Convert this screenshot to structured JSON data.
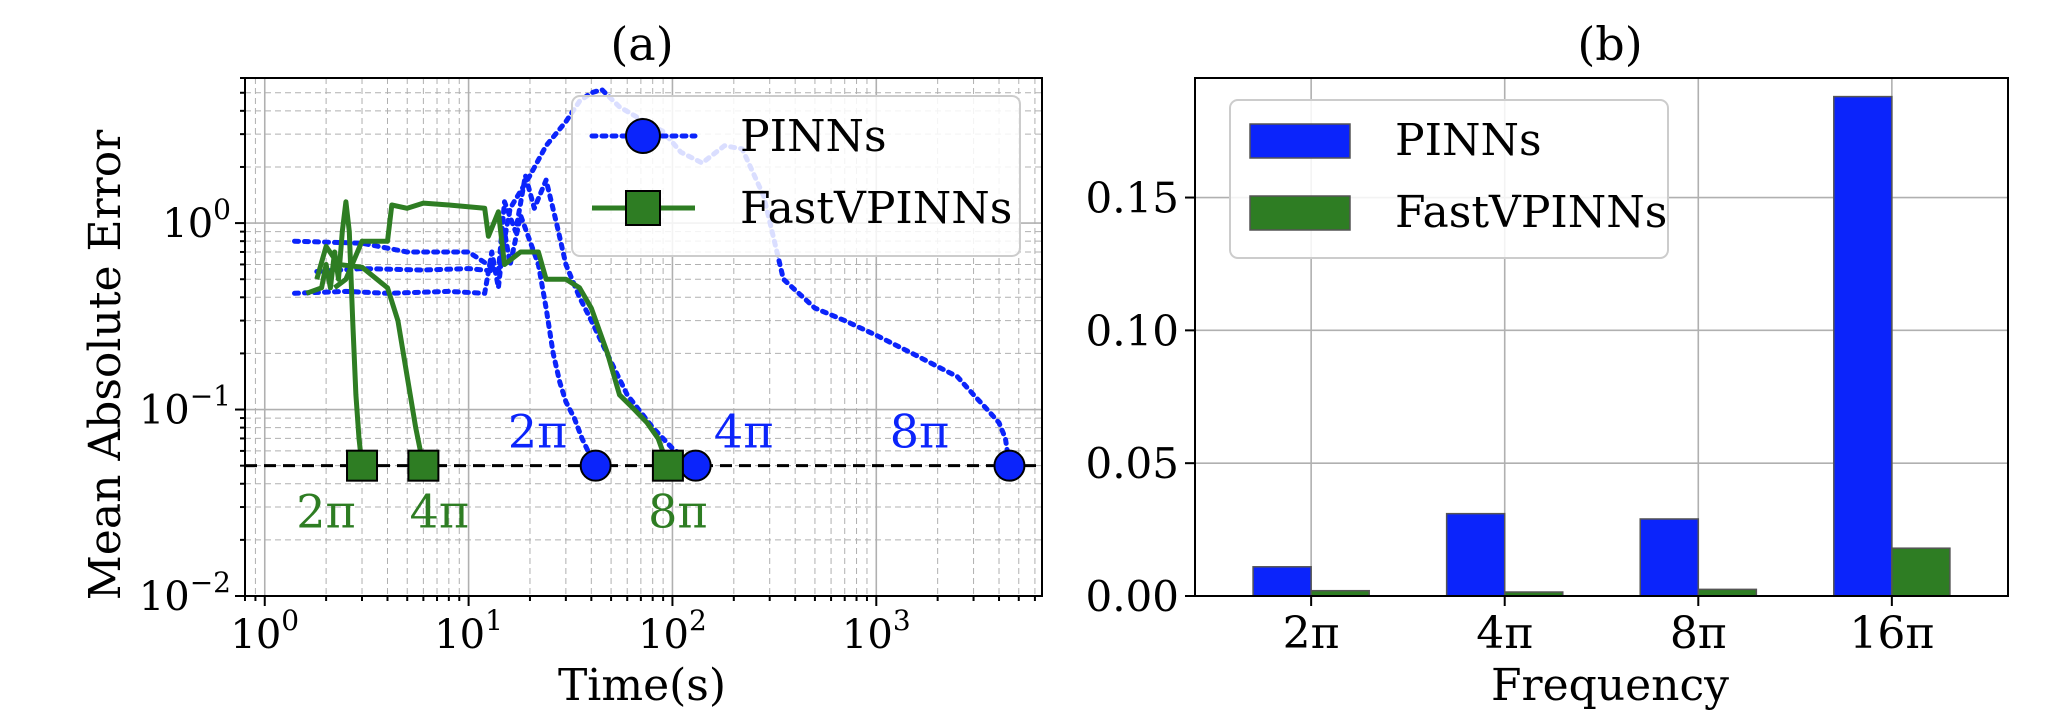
{
  "colors": {
    "pinns": "#0b24fb",
    "fastvpinns": "#2e7d23",
    "grid": "#b0b0b0",
    "threshold": "#000000"
  },
  "chart_data": [
    {
      "panel": "a",
      "type": "line",
      "title": "(a)",
      "xlabel": "Time(s)",
      "ylabel": "Mean Absolute Error",
      "xscale": "log",
      "yscale": "log",
      "xlim": [
        0.8,
        6500
      ],
      "ylim": [
        0.01,
        6
      ],
      "xticks": [
        1,
        10,
        100,
        1000
      ],
      "xtick_labels": [
        {
          "base": "10",
          "exp": "0"
        },
        {
          "base": "10",
          "exp": "1"
        },
        {
          "base": "10",
          "exp": "2"
        },
        {
          "base": "10",
          "exp": "3"
        }
      ],
      "yticks": [
        0.01,
        0.1,
        1
      ],
      "ytick_labels": [
        {
          "base": "10",
          "exp": "−2"
        },
        {
          "base": "10",
          "exp": "−1"
        },
        {
          "base": "10",
          "exp": "0"
        }
      ],
      "grid": true,
      "legend_position": "upper-right",
      "threshold": 0.05,
      "series": [
        {
          "name": "PINNs",
          "style": "dotted-line-circle-marker",
          "runs": [
            {
              "label": "2π",
              "end": [
                42,
                0.05
              ],
              "points": [
                [
                  1.4,
                  0.42
                ],
                [
                  2.5,
                  0.43
                ],
                [
                  4,
                  0.42
                ],
                [
                  8,
                  0.43
                ],
                [
                  12,
                  0.42
                ],
                [
                  13,
                  0.7
                ],
                [
                  14,
                  0.45
                ],
                [
                  15,
                  0.9
                ],
                [
                  16,
                  0.6
                ],
                [
                  18,
                  1.1
                ],
                [
                  20,
                  0.8
                ],
                [
                  22,
                  0.6
                ],
                [
                  24,
                  0.35
                ],
                [
                  26,
                  0.2
                ],
                [
                  28,
                  0.14
                ],
                [
                  30,
                  0.11
                ],
                [
                  33,
                  0.09
                ],
                [
                  36,
                  0.07
                ],
                [
                  40,
                  0.055
                ],
                [
                  42,
                  0.05
                ]
              ]
            },
            {
              "label": "4π",
              "end": [
                130,
                0.05
              ],
              "points": [
                [
                  1.4,
                  0.8
                ],
                [
                  3,
                  0.78
                ],
                [
                  5,
                  0.7
                ],
                [
                  10,
                  0.7
                ],
                [
                  14,
                  0.55
                ],
                [
                  15,
                  1.3
                ],
                [
                  17,
                  0.9
                ],
                [
                  19,
                  1.8
                ],
                [
                  21,
                  1.2
                ],
                [
                  24,
                  1.7
                ],
                [
                  27,
                  1.0
                ],
                [
                  30,
                  0.6
                ],
                [
                  35,
                  0.4
                ],
                [
                  40,
                  0.3
                ],
                [
                  50,
                  0.18
                ],
                [
                  60,
                  0.12
                ],
                [
                  80,
                  0.08
                ],
                [
                  100,
                  0.062
                ],
                [
                  130,
                  0.05
                ]
              ]
            },
            {
              "label": "8π",
              "end": [
                4500,
                0.05
              ],
              "points": [
                [
                  1.8,
                  0.55
                ],
                [
                  3,
                  0.57
                ],
                [
                  6,
                  0.56
                ],
                [
                  10,
                  0.57
                ],
                [
                  14,
                  0.55
                ],
                [
                  16,
                  1.2
                ],
                [
                  20,
                  1.8
                ],
                [
                  24,
                  2.6
                ],
                [
                  30,
                  3.5
                ],
                [
                  35,
                  4.5
                ],
                [
                  40,
                  5.0
                ],
                [
                  45,
                  5.2
                ],
                [
                  55,
                  4.2
                ],
                [
                  70,
                  3.6
                ],
                [
                  90,
                  3.1
                ],
                [
                  110,
                  2.4
                ],
                [
                  140,
                  2.1
                ],
                [
                  180,
                  2.6
                ],
                [
                  220,
                  2.5
                ],
                [
                  280,
                  1.4
                ],
                [
                  350,
                  0.5
                ],
                [
                  500,
                  0.35
                ],
                [
                  700,
                  0.3
                ],
                [
                  1000,
                  0.25
                ],
                [
                  1500,
                  0.2
                ],
                [
                  2000,
                  0.17
                ],
                [
                  2500,
                  0.15
                ],
                [
                  3000,
                  0.12
                ],
                [
                  3500,
                  0.1
                ],
                [
                  4000,
                  0.085
                ],
                [
                  4300,
                  0.07
                ],
                [
                  4500,
                  0.05
                ]
              ]
            }
          ]
        },
        {
          "name": "FastVPINNs",
          "style": "solid-line-square-marker",
          "runs": [
            {
              "label": "2π",
              "end": [
                3.0,
                0.05
              ],
              "points": [
                [
                  1.6,
                  0.42
                ],
                [
                  1.9,
                  0.45
                ],
                [
                  2.0,
                  0.6
                ],
                [
                  2.1,
                  0.45
                ],
                [
                  2.2,
                  0.7
                ],
                [
                  2.3,
                  0.5
                ],
                [
                  2.4,
                  0.9
                ],
                [
                  2.5,
                  1.3
                ],
                [
                  2.6,
                  0.9
                ],
                [
                  2.7,
                  0.3
                ],
                [
                  2.8,
                  0.12
                ],
                [
                  2.9,
                  0.07
                ],
                [
                  3.0,
                  0.05
                ]
              ]
            },
            {
              "label": "4π",
              "end": [
                6.0,
                0.05
              ],
              "points": [
                [
                  1.8,
                  0.5
                ],
                [
                  2.0,
                  0.75
                ],
                [
                  2.3,
                  0.6
                ],
                [
                  3,
                  0.58
                ],
                [
                  4,
                  0.45
                ],
                [
                  4.5,
                  0.3
                ],
                [
                  5,
                  0.15
                ],
                [
                  5.5,
                  0.08
                ],
                [
                  6.0,
                  0.05
                ]
              ]
            },
            {
              "label": "8π",
              "end": [
                95,
                0.05
              ],
              "points": [
                [
                  2.2,
                  0.45
                ],
                [
                  2.5,
                  0.5
                ],
                [
                  3,
                  0.8
                ],
                [
                  4,
                  0.8
                ],
                [
                  4.2,
                  1.25
                ],
                [
                  5,
                  1.2
                ],
                [
                  6,
                  1.28
                ],
                [
                  8,
                  1.25
                ],
                [
                  12,
                  1.2
                ],
                [
                  12.5,
                  0.85
                ],
                [
                  14,
                  1.15
                ],
                [
                  15,
                  0.6
                ],
                [
                  18,
                  0.7
                ],
                [
                  22,
                  0.7
                ],
                [
                  24,
                  0.5
                ],
                [
                  30,
                  0.5
                ],
                [
                  35,
                  0.45
                ],
                [
                  40,
                  0.35
                ],
                [
                  48,
                  0.2
                ],
                [
                  55,
                  0.12
                ],
                [
                  65,
                  0.1
                ],
                [
                  75,
                  0.085
                ],
                [
                  85,
                  0.07
                ],
                [
                  95,
                  0.05
                ]
              ]
            }
          ]
        }
      ]
    },
    {
      "panel": "b",
      "type": "bar",
      "title": "(b)",
      "xlabel": "Frequency",
      "ylabel": "",
      "categories": [
        "2π",
        "4π",
        "8π",
        "16π"
      ],
      "ylim": [
        0,
        0.195
      ],
      "yticks": [
        0.0,
        0.05,
        0.1,
        0.15
      ],
      "ytick_labels": [
        "0.00",
        "0.05",
        "0.10",
        "0.15"
      ],
      "grid": true,
      "legend_position": "upper-left",
      "series": [
        {
          "name": "PINNs",
          "values": [
            0.011,
            0.031,
            0.029,
            0.188
          ]
        },
        {
          "name": "FastVPINNs",
          "values": [
            0.002,
            0.0015,
            0.0025,
            0.018
          ]
        }
      ]
    }
  ]
}
